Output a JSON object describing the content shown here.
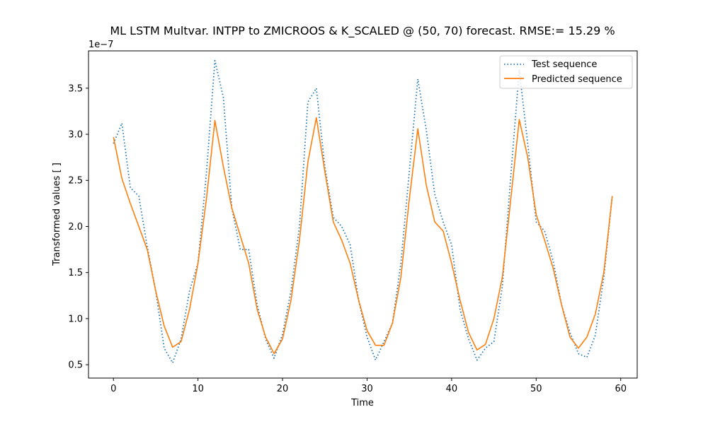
{
  "chart_data": {
    "type": "line",
    "title": "ML LSTM Multvar. INTPP to ZMICROOS &  K_SCALED @ (50, 70) forecast. RMSE:=  15.29 %",
    "xlabel": "Time",
    "ylabel": "Transformed values [ ]",
    "y_offset_text": "1e−7",
    "xlim": [
      -2.95,
      61.95
    ],
    "ylim": [
      0.355,
      3.905
    ],
    "x_ticks": [
      0,
      10,
      20,
      30,
      40,
      50,
      60
    ],
    "x_tick_labels": [
      "0",
      "10",
      "20",
      "30",
      "40",
      "50",
      "60"
    ],
    "y_ticks": [
      0.5,
      1.0,
      1.5,
      2.0,
      2.5,
      3.0,
      3.5
    ],
    "y_tick_labels": [
      "0.5",
      "1.0",
      "1.5",
      "2.0",
      "2.5",
      "3.0",
      "3.5"
    ],
    "grid": false,
    "legend_position": "top-right",
    "x": [
      0,
      1,
      2,
      3,
      4,
      5,
      6,
      7,
      8,
      9,
      10,
      11,
      12,
      13,
      14,
      15,
      16,
      17,
      18,
      19,
      20,
      21,
      22,
      23,
      24,
      25,
      26,
      27,
      28,
      29,
      30,
      31,
      32,
      33,
      34,
      35,
      36,
      37,
      38,
      39,
      40,
      41,
      42,
      43,
      44,
      45,
      46,
      47,
      48,
      49,
      50,
      51,
      52,
      53,
      54,
      55,
      56,
      57,
      58,
      59
    ],
    "series": [
      {
        "name": "Test sequence",
        "color": "#1f77b4",
        "style": "dotted",
        "values": [
          2.9,
          3.12,
          2.42,
          2.33,
          1.78,
          1.3,
          0.68,
          0.52,
          0.78,
          1.3,
          1.6,
          2.58,
          3.8,
          3.4,
          2.2,
          1.75,
          1.75,
          1.15,
          0.78,
          0.57,
          0.83,
          1.3,
          2.0,
          3.35,
          3.5,
          2.65,
          2.1,
          2.0,
          1.8,
          1.2,
          0.8,
          0.55,
          0.75,
          0.95,
          1.6,
          2.6,
          3.6,
          3.05,
          2.35,
          2.05,
          1.8,
          1.1,
          0.78,
          0.55,
          0.68,
          0.75,
          1.35,
          2.55,
          3.7,
          2.9,
          2.05,
          1.95,
          1.63,
          1.15,
          0.85,
          0.62,
          0.58,
          0.82,
          1.45,
          2.33
        ]
      },
      {
        "name": "Predicted sequence",
        "color": "#ff7f0e",
        "style": "solid",
        "values": [
          2.97,
          2.52,
          2.25,
          2.0,
          1.75,
          1.3,
          0.92,
          0.69,
          0.75,
          1.1,
          1.6,
          2.3,
          3.15,
          2.65,
          2.2,
          1.9,
          1.6,
          1.1,
          0.8,
          0.62,
          0.78,
          1.2,
          1.85,
          2.7,
          3.18,
          2.6,
          2.05,
          1.85,
          1.6,
          1.2,
          0.87,
          0.71,
          0.71,
          0.95,
          1.45,
          2.3,
          3.06,
          2.45,
          2.05,
          1.95,
          1.6,
          1.2,
          0.85,
          0.66,
          0.72,
          1.0,
          1.45,
          2.3,
          3.16,
          2.75,
          2.13,
          1.85,
          1.55,
          1.15,
          0.8,
          0.68,
          0.8,
          1.05,
          1.5,
          2.33
        ]
      }
    ]
  }
}
